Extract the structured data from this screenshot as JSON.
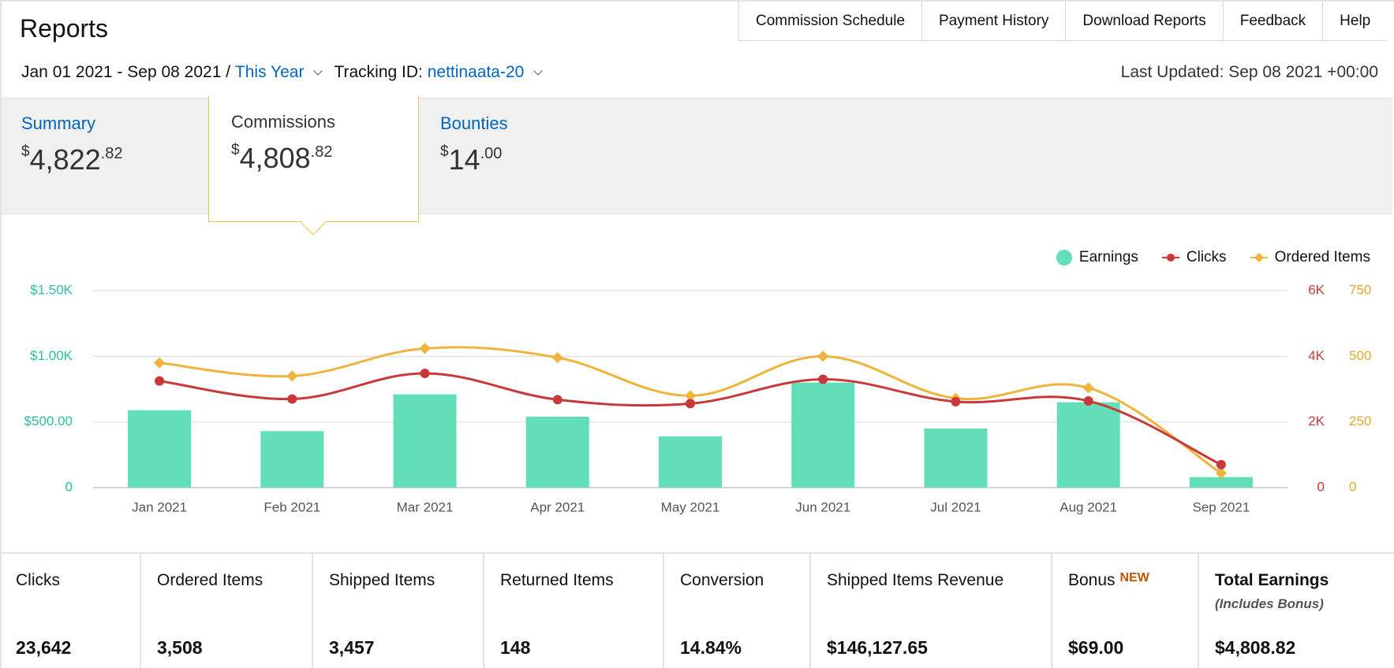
{
  "header": {
    "title": "Reports",
    "nav": [
      "Commission Schedule",
      "Payment History",
      "Download Reports",
      "Feedback",
      "Help"
    ],
    "date_range": "Jan 01 2021 - Sep 08 2021 /",
    "period": "This Year",
    "tracking_label": "Tracking ID:",
    "tracking_id": "nettinaata-20",
    "last_updated": "Last Updated: Sep 08 2021 +00:00"
  },
  "summary_tabs": {
    "summary": {
      "label": "Summary",
      "currency": "$",
      "whole": "4,822",
      "cents": ".82"
    },
    "commissions": {
      "label": "Commissions",
      "currency": "$",
      "whole": "4,808",
      "cents": ".82"
    },
    "bounties": {
      "label": "Bounties",
      "currency": "$",
      "whole": "14",
      "cents": ".00"
    }
  },
  "chart_data": {
    "type": "bar",
    "categories": [
      "Jan 2021",
      "Feb 2021",
      "Mar 2021",
      "Apr 2021",
      "May 2021",
      "Jun 2021",
      "Jul 2021",
      "Aug 2021",
      "Sep 2021"
    ],
    "series": [
      {
        "name": "Earnings",
        "kind": "bar",
        "axis": "left",
        "color": "#62dfb9",
        "values": [
          590,
          430,
          710,
          540,
          390,
          800,
          450,
          650,
          80
        ]
      },
      {
        "name": "Clicks",
        "kind": "line",
        "axis": "right-1",
        "color": "#c9393a",
        "values": [
          3250,
          2700,
          3480,
          2680,
          2560,
          3300,
          2620,
          2640,
          700
        ]
      },
      {
        "name": "Ordered Items",
        "kind": "line",
        "axis": "right-2",
        "color": "#f0b43c",
        "values": [
          475,
          425,
          530,
          495,
          350,
          500,
          340,
          380,
          55
        ]
      }
    ],
    "axes": {
      "left": {
        "ylim": [
          0,
          1500
        ],
        "ticks": [
          0,
          500,
          1000,
          1500
        ],
        "tick_labels": [
          "0",
          "$500.00",
          "$1.00K",
          "$1.50K"
        ],
        "color": "#2bbfa0"
      },
      "right-1": {
        "ylim": [
          0,
          6000
        ],
        "ticks": [
          0,
          2000,
          4000,
          6000
        ],
        "tick_labels": [
          "0",
          "2K",
          "4K",
          "6K"
        ],
        "color": "#c9393a"
      },
      "right-2": {
        "ylim": [
          0,
          750
        ],
        "ticks": [
          0,
          250,
          500,
          750
        ],
        "tick_labels": [
          "0",
          "250",
          "500",
          "750"
        ],
        "color": "#e3a92e"
      }
    },
    "grid": true,
    "legend": "top-right"
  },
  "stats": [
    {
      "label": "Clicks",
      "value": "23,642"
    },
    {
      "label": "Ordered Items",
      "value": "3,508"
    },
    {
      "label": "Shipped Items",
      "value": "3,457"
    },
    {
      "label": "Returned Items",
      "value": "148"
    },
    {
      "label": "Conversion",
      "value": "14.84%"
    },
    {
      "label": "Shipped Items Revenue",
      "value": "$146,127.65"
    },
    {
      "label": "Bonus",
      "badge": "NEW",
      "value": "$69.00"
    },
    {
      "label": "Total Earnings",
      "sub": "(Includes Bonus)",
      "value": "$4,808.82"
    }
  ],
  "colors": {
    "link": "#0066c0",
    "accent_border": "#f0c14b",
    "band": "#f0f0f0"
  }
}
